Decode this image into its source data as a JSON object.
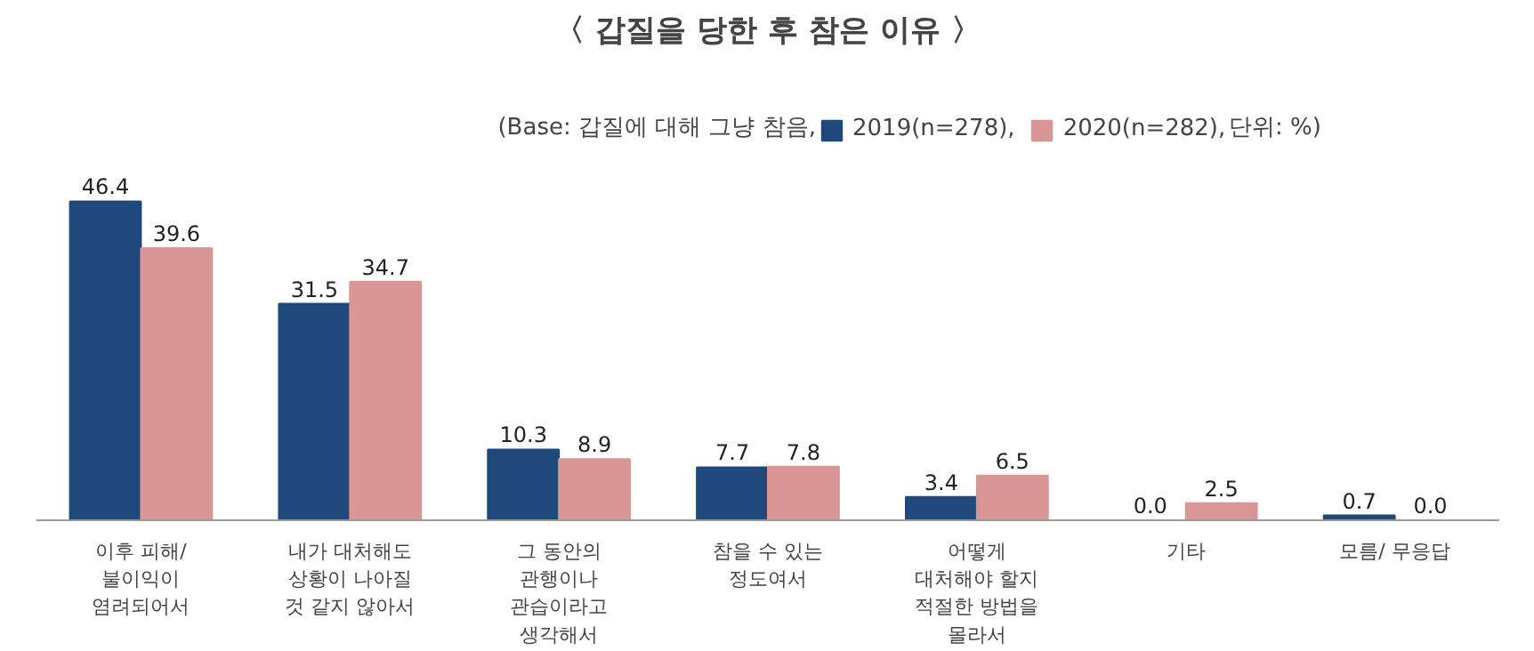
{
  "chart_data": {
    "type": "bar",
    "title": "〈 갑질을 당한 후 참은 이유 〉",
    "subtitle": "(Base: 갑질에 대해 그냥 참음,",
    "annotations": [
      "단위: %)"
    ],
    "categories": [
      "이후 피해/\n불이익이\n염려되어서",
      "내가 대처해도\n상황이 나아질\n것 같지 않아서",
      "그 동안의\n관행이나\n관습이라고\n생각해서",
      "참을 수 있는\n정도여서",
      "어떻게\n대처해야 할지\n적절한 방법을\n몰라서",
      "기타",
      "모름/ 무응답"
    ],
    "series": [
      {
        "name": "2019(n=278),",
        "color": "#1f497d",
        "values": [
          46.4,
          31.5,
          10.3,
          7.7,
          3.4,
          0.0,
          0.7
        ],
        "value_labels": [
          "46.4",
          "31.5",
          "10.3",
          "7.7",
          "3.4",
          "0.0",
          "0.7"
        ]
      },
      {
        "name": "2020(n=282),",
        "color": "#d99694",
        "values": [
          39.6,
          34.7,
          8.9,
          7.8,
          6.5,
          2.5,
          0.0
        ],
        "value_labels": [
          "39.6",
          "34.7",
          "8.9",
          "7.8",
          "6.5",
          "2.5",
          "0.0"
        ]
      }
    ],
    "legend": "top right",
    "grid": false
  }
}
